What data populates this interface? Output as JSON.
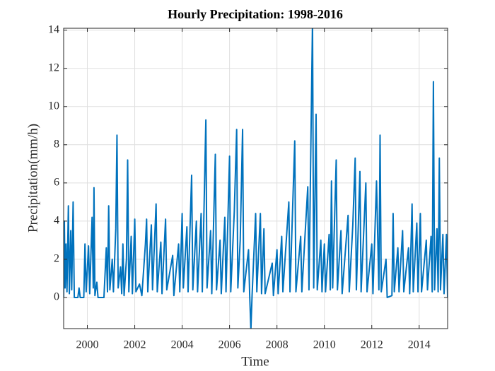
{
  "chart_data": {
    "type": "line",
    "title": "Hourly Precipitation: 1998-2016",
    "x_label": "Time",
    "y_label": "Precipitation(mm/h)",
    "xlim": [
      1999.0,
      2015.2
    ],
    "ylim": [
      -1.63,
      14.1
    ],
    "xticks": [
      2000,
      2002,
      2004,
      2006,
      2008,
      2010,
      2012,
      2014
    ],
    "yticks": [
      0,
      2,
      4,
      6,
      8,
      10,
      12,
      14
    ],
    "grid": true,
    "series": [
      {
        "color": "#0072bd",
        "x": [
          1999.0,
          1999.03,
          1999.06,
          1999.1,
          1999.14,
          1999.2,
          1999.24,
          1999.3,
          1999.34,
          1999.4,
          1999.45,
          1999.6,
          1999.65,
          1999.7,
          1999.85,
          1999.9,
          1999.95,
          2000.05,
          2000.1,
          2000.2,
          2000.25,
          2000.28,
          2000.32,
          2000.4,
          2000.45,
          2000.7,
          2000.8,
          2000.85,
          2000.9,
          2000.95,
          2001.05,
          2001.1,
          2001.2,
          2001.25,
          2001.3,
          2001.4,
          2001.45,
          2001.5,
          2001.55,
          2001.65,
          2001.7,
          2001.75,
          2001.85,
          2001.9,
          2002.0,
          2002.05,
          2002.2,
          2002.3,
          2002.45,
          2002.5,
          2002.55,
          2002.7,
          2002.75,
          2002.9,
          2002.95,
          2003.1,
          2003.15,
          2003.3,
          2003.35,
          2003.6,
          2003.65,
          2003.85,
          2003.9,
          2004.0,
          2004.05,
          2004.2,
          2004.25,
          2004.4,
          2004.45,
          2004.6,
          2004.65,
          2004.8,
          2004.85,
          2005.0,
          2005.05,
          2005.2,
          2005.25,
          2005.4,
          2005.45,
          2005.6,
          2005.65,
          2005.8,
          2005.85,
          2006.0,
          2006.05,
          2006.2,
          2006.3,
          2006.35,
          2006.45,
          2006.55,
          2006.6,
          2006.8,
          2006.85,
          2006.9,
          2006.95,
          2007.1,
          2007.15,
          2007.3,
          2007.35,
          2007.45,
          2007.5,
          2007.8,
          2007.85,
          2008.0,
          2008.05,
          2008.2,
          2008.25,
          2008.5,
          2008.55,
          2008.75,
          2008.8,
          2009.0,
          2009.05,
          2009.3,
          2009.35,
          2009.5,
          2009.55,
          2009.65,
          2009.7,
          2009.85,
          2009.9,
          2010.0,
          2010.05,
          2010.2,
          2010.25,
          2010.3,
          2010.35,
          2010.5,
          2010.55,
          2010.7,
          2010.75,
          2011.0,
          2011.05,
          2011.2,
          2011.3,
          2011.35,
          2011.5,
          2011.55,
          2011.75,
          2011.8,
          2012.0,
          2012.05,
          2012.2,
          2012.3,
          2012.35,
          2012.4,
          2012.6,
          2012.65,
          2012.85,
          2012.9,
          2012.95,
          2013.1,
          2013.15,
          2013.3,
          2013.35,
          2013.55,
          2013.6,
          2013.7,
          2013.75,
          2013.9,
          2013.95,
          2014.05,
          2014.1,
          2014.3,
          2014.35,
          2014.5,
          2014.55,
          2014.6,
          2014.65,
          2014.75,
          2014.8,
          2014.85,
          2014.9,
          2015.0,
          2015.05,
          2015.15,
          2015.2
        ],
        "values": [
          0,
          4.0,
          0.5,
          2.8,
          0.3,
          4.8,
          0.2,
          3.5,
          0.4,
          5.0,
          0,
          0,
          0.5,
          0,
          0,
          2.8,
          0.3,
          2.7,
          0.2,
          4.2,
          0.5,
          5.75,
          0.1,
          0.8,
          0,
          0,
          2.6,
          0.3,
          4.8,
          0.4,
          2.0,
          0.3,
          3.6,
          8.5,
          0.5,
          1.6,
          0.2,
          2.8,
          0.1,
          2.0,
          7.2,
          0.3,
          3.2,
          0.2,
          4.1,
          0.3,
          0.7,
          0.1,
          2.8,
          4.1,
          0.3,
          3.8,
          0.4,
          4.9,
          0.3,
          2.9,
          0.2,
          4.1,
          0.4,
          2.2,
          0.1,
          2.8,
          0.3,
          4.4,
          0.5,
          3.7,
          0.3,
          6.4,
          0.4,
          4.0,
          0.3,
          4.4,
          0.3,
          9.3,
          0.5,
          3.5,
          0.2,
          7.5,
          0.4,
          3.0,
          0.2,
          4.2,
          0.3,
          7.4,
          0.3,
          4.5,
          8.8,
          0.5,
          3.0,
          8.8,
          0.3,
          2.5,
          0.1,
          -1.7,
          0.1,
          4.4,
          0.3,
          4.4,
          0.2,
          3.6,
          0.2,
          1.8,
          0.1,
          2.5,
          0.2,
          3.2,
          0.3,
          5.0,
          0.3,
          8.2,
          0.3,
          3.2,
          0.3,
          5.8,
          0.4,
          14.5,
          0.5,
          9.6,
          0.4,
          3.0,
          0.3,
          2.8,
          0.3,
          3.3,
          0.4,
          6.1,
          0.5,
          7.2,
          0.4,
          3.5,
          0.2,
          4.3,
          0.3,
          3.8,
          7.3,
          0.4,
          6.6,
          0.3,
          6.0,
          0.3,
          2.8,
          0.2,
          6.1,
          0.4,
          8.5,
          0.3,
          2.0,
          0,
          0.1,
          4.4,
          0.3,
          2.6,
          0.3,
          3.5,
          0.3,
          2.6,
          0.2,
          4.9,
          0.3,
          3.9,
          0.3,
          4.4,
          0.3,
          3.0,
          0.4,
          3.2,
          0.3,
          11.3,
          0.4,
          3.6,
          0.3,
          7.3,
          0.4,
          3.3,
          0.2,
          3.3,
          0
        ]
      }
    ]
  }
}
